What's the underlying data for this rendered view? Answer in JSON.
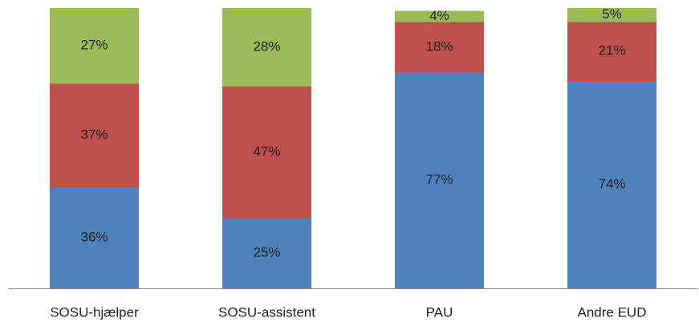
{
  "chart_data": {
    "type": "stacked_bar",
    "categories": [
      "SOSU-hjælper",
      "SOSU-assistent",
      "PAU",
      "Andre EUD"
    ],
    "ylim": [
      0,
      100
    ],
    "series": [
      {
        "color": "#4f81bd",
        "values": [
          36,
          25,
          77,
          74
        ],
        "value_labels": [
          "36%",
          "25%",
          "77%",
          "74%"
        ]
      },
      {
        "color": "#c0504d",
        "values": [
          37,
          47,
          18,
          21
        ],
        "value_labels": [
          "37%",
          "47%",
          "18%",
          "21%"
        ]
      },
      {
        "color": "#9bbb59",
        "values": [
          27,
          28,
          4,
          5
        ],
        "value_labels": [
          "27%",
          "28%",
          "4%",
          "5%"
        ]
      }
    ]
  }
}
